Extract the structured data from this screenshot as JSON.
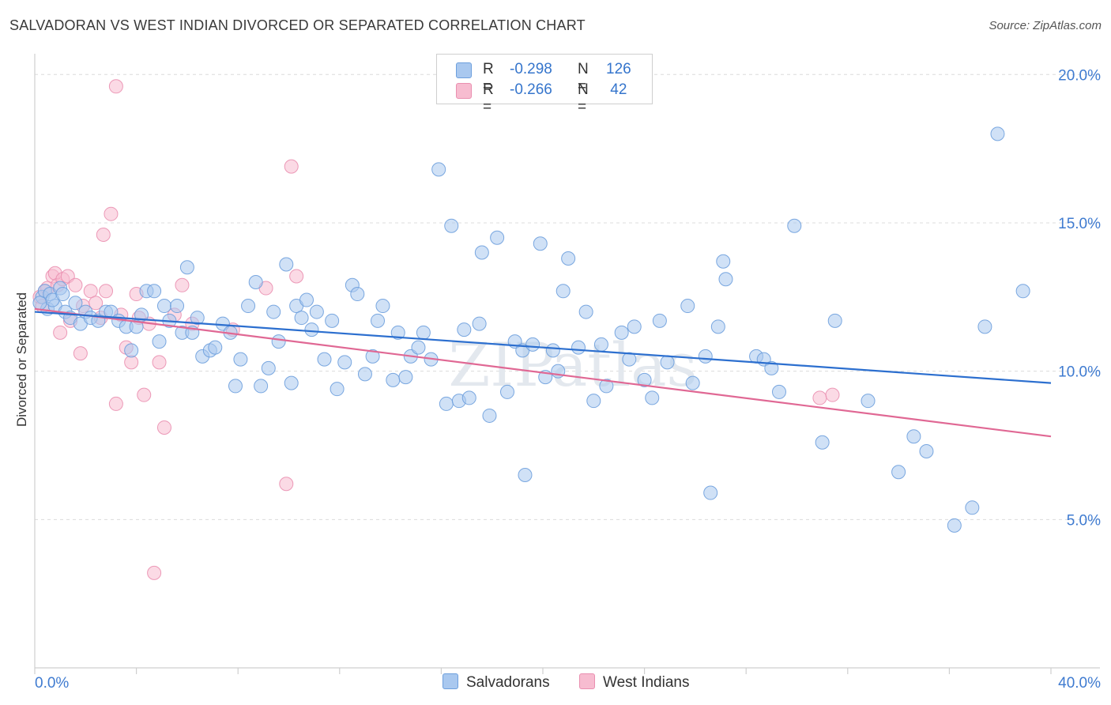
{
  "title": "SALVADORAN VS WEST INDIAN DIVORCED OR SEPARATED CORRELATION CHART",
  "source": "Source: ZipAtlas.com",
  "watermark": "ZIPatlas",
  "legend": {
    "rows": [
      {
        "r_label": "R =",
        "r_value": "-0.298",
        "n_label": "N =",
        "n_value": "126"
      },
      {
        "r_label": "R =",
        "r_value": "-0.266",
        "n_label": "N =",
        "n_value": " 42"
      }
    ]
  },
  "bottom_legend": [
    "Salvadorans",
    "West Indians"
  ],
  "colors": {
    "blue_fill": "#a9c8ef",
    "blue_stroke": "#6d9fdd",
    "blue_line": "#2c6fcf",
    "pink_fill": "#f7bcd0",
    "pink_stroke": "#ea8fb0",
    "pink_line": "#e06894",
    "axis_text": "#3f7bd0",
    "grid": "#dcdcdc"
  },
  "chart_data": {
    "type": "scatter",
    "title": "SALVADORAN VS WEST INDIAN DIVORCED OR SEPARATED CORRELATION CHART",
    "xlabel": "",
    "ylabel": "Divorced or Separated",
    "xlim": [
      0,
      40
    ],
    "ylim": [
      0,
      20.7
    ],
    "x_tick_labels": [
      "0.0%",
      "40.0%"
    ],
    "y_ticks": [
      5,
      10,
      15,
      20
    ],
    "y_tick_labels": [
      "5.0%",
      "10.0%",
      "15.0%",
      "20.0%"
    ],
    "grid": "horizontal dashed",
    "series": [
      {
        "name": "Salvadorans",
        "trend": [
          [
            0,
            12.0
          ],
          [
            40,
            9.6
          ]
        ],
        "points": [
          [
            0.3,
            12.5
          ],
          [
            0.4,
            12.7
          ],
          [
            0.5,
            12.1
          ],
          [
            0.6,
            12.6
          ],
          [
            0.8,
            12.2
          ],
          [
            1.0,
            12.8
          ],
          [
            1.2,
            12.0
          ],
          [
            1.4,
            11.8
          ],
          [
            1.6,
            12.3
          ],
          [
            1.8,
            11.6
          ],
          [
            2.0,
            12.0
          ],
          [
            2.2,
            11.8
          ],
          [
            2.5,
            11.7
          ],
          [
            2.8,
            12.0
          ],
          [
            3.0,
            12.0
          ],
          [
            3.3,
            11.7
          ],
          [
            3.6,
            11.5
          ],
          [
            3.8,
            10.7
          ],
          [
            4.0,
            11.5
          ],
          [
            4.2,
            11.9
          ],
          [
            4.4,
            12.7
          ],
          [
            4.7,
            12.7
          ],
          [
            4.9,
            11.0
          ],
          [
            5.1,
            12.2
          ],
          [
            5.3,
            11.7
          ],
          [
            5.6,
            12.2
          ],
          [
            5.8,
            11.3
          ],
          [
            6.0,
            13.5
          ],
          [
            6.2,
            11.3
          ],
          [
            6.4,
            11.8
          ],
          [
            6.6,
            10.5
          ],
          [
            6.9,
            10.7
          ],
          [
            7.1,
            10.8
          ],
          [
            7.4,
            11.6
          ],
          [
            7.7,
            11.3
          ],
          [
            7.9,
            9.5
          ],
          [
            8.1,
            10.4
          ],
          [
            8.4,
            12.2
          ],
          [
            8.7,
            13.0
          ],
          [
            8.9,
            9.5
          ],
          [
            9.2,
            10.1
          ],
          [
            9.4,
            12.0
          ],
          [
            9.6,
            11.0
          ],
          [
            9.9,
            13.6
          ],
          [
            10.1,
            9.6
          ],
          [
            10.3,
            12.2
          ],
          [
            10.5,
            11.8
          ],
          [
            10.7,
            12.4
          ],
          [
            10.9,
            11.4
          ],
          [
            11.1,
            12.0
          ],
          [
            11.4,
            10.4
          ],
          [
            11.7,
            11.7
          ],
          [
            11.9,
            9.4
          ],
          [
            12.2,
            10.3
          ],
          [
            12.5,
            12.9
          ],
          [
            12.7,
            12.6
          ],
          [
            13.0,
            9.9
          ],
          [
            13.3,
            10.5
          ],
          [
            13.5,
            11.7
          ],
          [
            13.7,
            12.2
          ],
          [
            14.1,
            9.7
          ],
          [
            14.3,
            11.3
          ],
          [
            14.6,
            9.8
          ],
          [
            14.8,
            10.5
          ],
          [
            15.1,
            10.8
          ],
          [
            15.3,
            11.3
          ],
          [
            15.6,
            10.4
          ],
          [
            15.9,
            16.8
          ],
          [
            16.2,
            8.9
          ],
          [
            16.4,
            14.9
          ],
          [
            16.7,
            9.0
          ],
          [
            16.9,
            11.4
          ],
          [
            17.1,
            9.1
          ],
          [
            17.5,
            11.6
          ],
          [
            17.6,
            14.0
          ],
          [
            17.9,
            8.5
          ],
          [
            18.2,
            14.5
          ],
          [
            18.6,
            9.3
          ],
          [
            18.9,
            11.0
          ],
          [
            19.2,
            10.7
          ],
          [
            19.3,
            6.5
          ],
          [
            19.6,
            10.9
          ],
          [
            19.9,
            14.3
          ],
          [
            20.1,
            9.8
          ],
          [
            20.4,
            10.7
          ],
          [
            20.6,
            10.0
          ],
          [
            20.8,
            12.7
          ],
          [
            21.0,
            13.8
          ],
          [
            21.4,
            10.8
          ],
          [
            21.7,
            12.0
          ],
          [
            22.0,
            9.0
          ],
          [
            22.3,
            10.9
          ],
          [
            22.5,
            9.5
          ],
          [
            23.1,
            11.3
          ],
          [
            23.4,
            10.4
          ],
          [
            23.6,
            11.5
          ],
          [
            24.0,
            9.7
          ],
          [
            24.3,
            9.1
          ],
          [
            24.6,
            11.7
          ],
          [
            24.9,
            10.3
          ],
          [
            25.7,
            12.2
          ],
          [
            25.9,
            9.6
          ],
          [
            26.4,
            10.5
          ],
          [
            26.6,
            5.9
          ],
          [
            26.9,
            11.5
          ],
          [
            27.1,
            13.7
          ],
          [
            27.2,
            13.1
          ],
          [
            28.4,
            10.5
          ],
          [
            28.7,
            10.4
          ],
          [
            29.0,
            10.1
          ],
          [
            29.3,
            9.3
          ],
          [
            29.9,
            14.9
          ],
          [
            31.0,
            7.6
          ],
          [
            31.5,
            11.7
          ],
          [
            32.8,
            9.0
          ],
          [
            34.0,
            6.6
          ],
          [
            34.6,
            7.8
          ],
          [
            35.1,
            7.3
          ],
          [
            36.2,
            4.8
          ],
          [
            36.9,
            5.4
          ],
          [
            37.4,
            11.5
          ],
          [
            37.9,
            18.0
          ],
          [
            38.9,
            12.7
          ],
          [
            0.2,
            12.3
          ],
          [
            0.7,
            12.4
          ],
          [
            1.1,
            12.6
          ]
        ]
      },
      {
        "name": "West Indians",
        "trend": [
          [
            0,
            12.1
          ],
          [
            40,
            7.8
          ]
        ],
        "points": [
          [
            0.2,
            12.5
          ],
          [
            0.3,
            12.2
          ],
          [
            0.4,
            12.7
          ],
          [
            0.5,
            12.8
          ],
          [
            0.7,
            13.2
          ],
          [
            0.8,
            13.3
          ],
          [
            0.9,
            12.9
          ],
          [
            1.0,
            11.3
          ],
          [
            1.1,
            13.1
          ],
          [
            1.3,
            13.2
          ],
          [
            1.4,
            11.7
          ],
          [
            1.6,
            12.9
          ],
          [
            1.8,
            10.6
          ],
          [
            1.9,
            12.2
          ],
          [
            2.2,
            12.7
          ],
          [
            2.4,
            12.3
          ],
          [
            2.6,
            11.8
          ],
          [
            2.8,
            12.7
          ],
          [
            3.0,
            15.3
          ],
          [
            3.2,
            8.9
          ],
          [
            3.4,
            11.9
          ],
          [
            3.6,
            10.8
          ],
          [
            3.8,
            10.3
          ],
          [
            4.0,
            12.6
          ],
          [
            4.1,
            11.8
          ],
          [
            4.3,
            9.2
          ],
          [
            4.5,
            11.6
          ],
          [
            4.7,
            3.2
          ],
          [
            4.9,
            10.3
          ],
          [
            5.1,
            8.1
          ],
          [
            5.5,
            11.9
          ],
          [
            5.8,
            12.9
          ],
          [
            6.2,
            11.6
          ],
          [
            7.8,
            11.4
          ],
          [
            9.1,
            12.8
          ],
          [
            9.9,
            6.2
          ],
          [
            10.1,
            16.9
          ],
          [
            10.3,
            13.2
          ],
          [
            30.9,
            9.1
          ],
          [
            31.4,
            9.2
          ],
          [
            2.7,
            14.6
          ],
          [
            3.2,
            19.6
          ]
        ]
      }
    ]
  }
}
